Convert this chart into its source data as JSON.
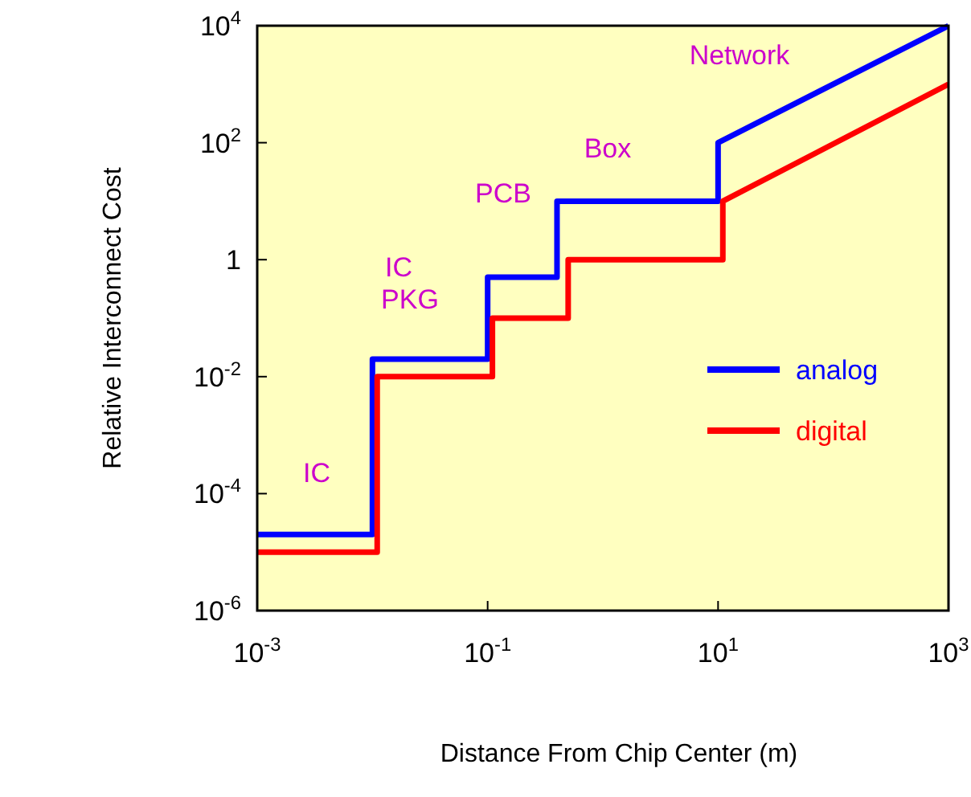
{
  "chart_data": {
    "type": "line",
    "xlabel": "Distance From Chip Center (m)",
    "ylabel": "Relative Interconnect Cost",
    "log": "xy",
    "xlim": [
      0.001,
      1000
    ],
    "ylim": [
      1e-06,
      10000
    ],
    "xticks": [
      {
        "value": 0.001,
        "label": "10$^{-3}$"
      },
      {
        "value": 0.1,
        "label": "10$^{-1}$"
      },
      {
        "value": 10,
        "label": "10$^{1}$"
      },
      {
        "value": 1000,
        "label": "10$^{3}$"
      }
    ],
    "yticks": [
      {
        "value": 1e-06,
        "label": "10$^{-6}$"
      },
      {
        "value": 0.0001,
        "label": "10$^{-4}$"
      },
      {
        "value": 0.01,
        "label": "10$^{-2}$"
      },
      1,
      {
        "value": 100,
        "label": "10$^{2}$"
      },
      {
        "value": 10000,
        "label": "10$^{4}$"
      }
    ],
    "grid": false,
    "legend": "bottom right",
    "line_style": "solid",
    "series": [
      {
        "name": "analog",
        "color": "#0000ff",
        "x": [
          0.001,
          0.01,
          0.01,
          0.1,
          0.1,
          0.4,
          0.4,
          10,
          10,
          1000
        ],
        "values": [
          2e-05,
          2e-05,
          0.02,
          0.02,
          0.5,
          0.5,
          10,
          10,
          100,
          10000
        ]
      },
      {
        "name": "digital",
        "color": "#ff0000",
        "x": [
          0.001,
          0.011,
          0.011,
          0.11,
          0.11,
          0.5,
          0.5,
          11,
          11,
          1000
        ],
        "values": [
          1e-05,
          1e-05,
          0.01,
          0.01,
          0.1,
          0.1,
          1,
          1,
          10,
          1000
        ]
      }
    ],
    "annotations": [
      "IC",
      "IC",
      "PKG",
      "PCB",
      "Box",
      "Network"
    ]
  }
}
